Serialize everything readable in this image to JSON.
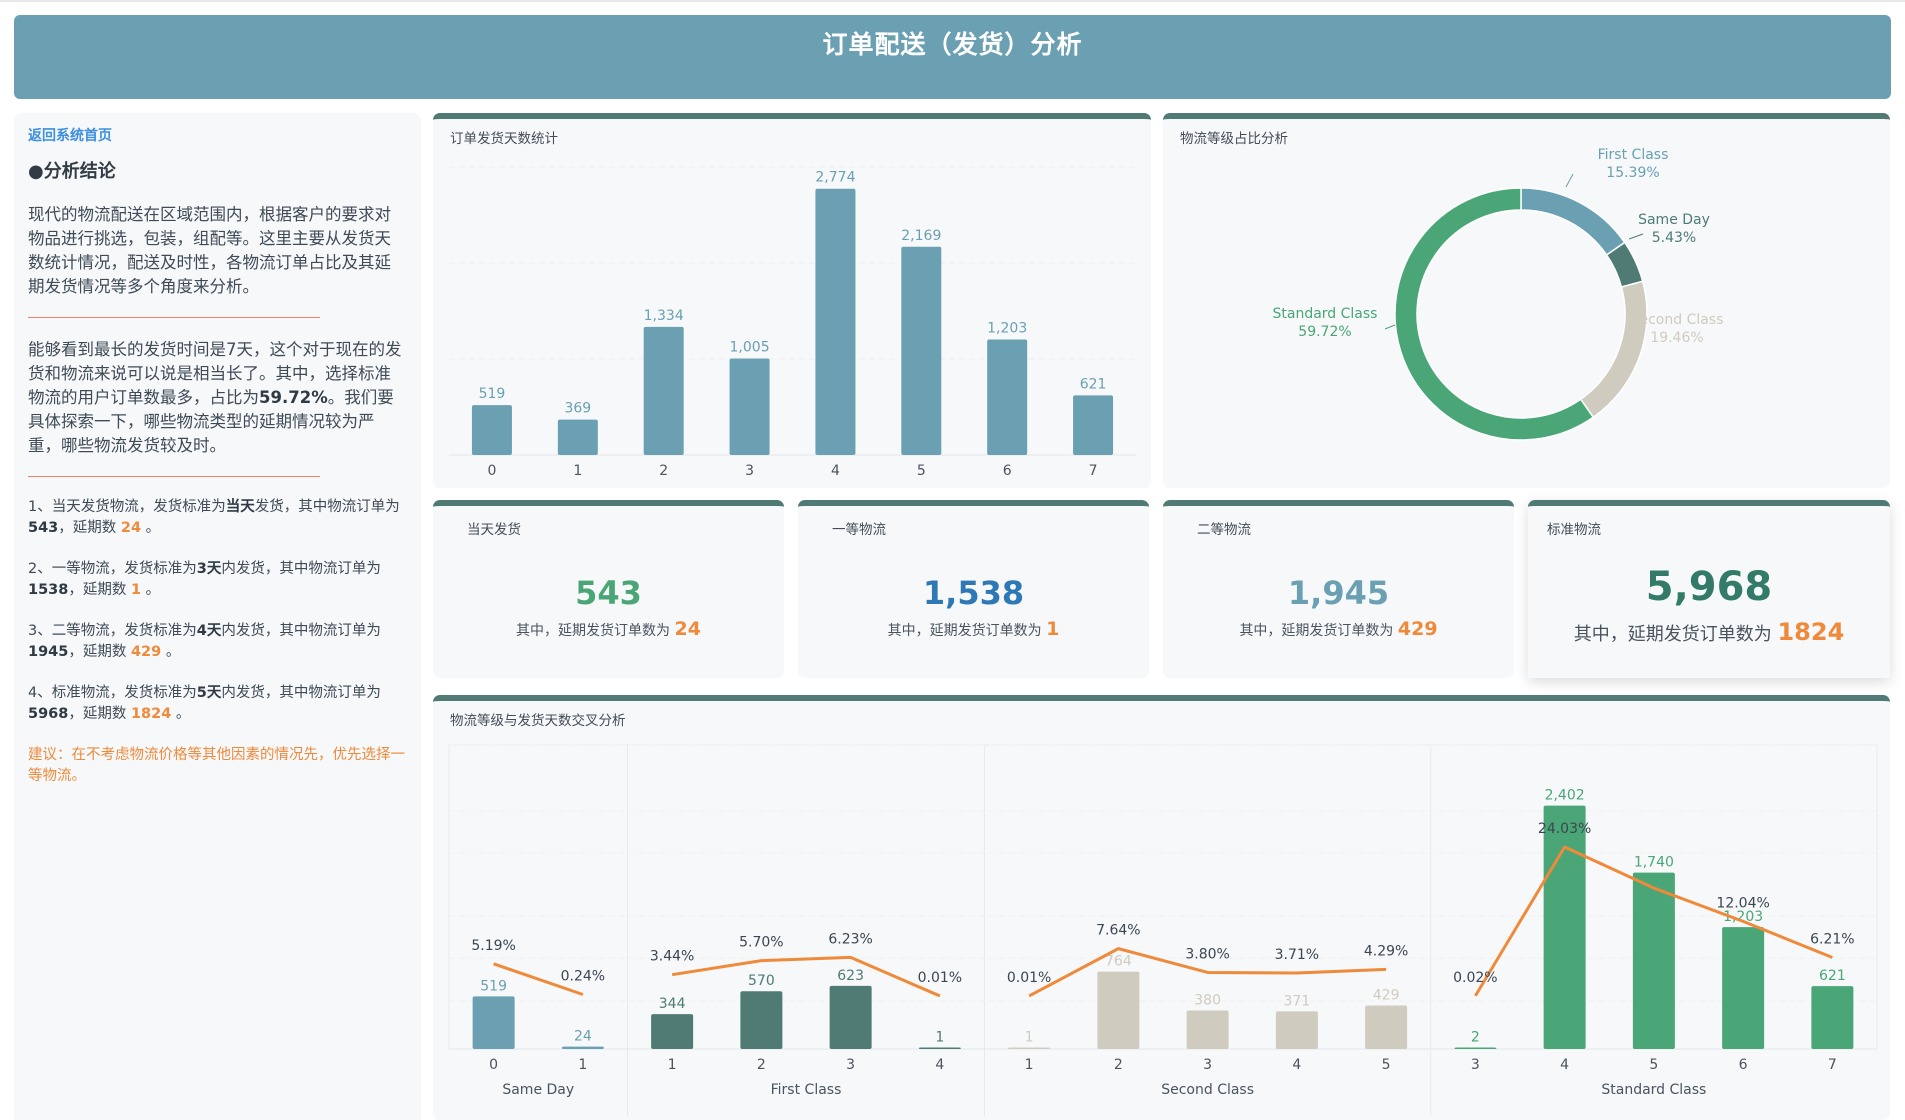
{
  "header": {
    "title": "订单配送（发货）分析"
  },
  "left_panel": {
    "home_link": "返回系统首页",
    "section_title": "●分析结论",
    "intro": "现代的物流配送在区域范围内，根据客户的要求对物品进行挑选，包装，组配等。这里主要从发货天数统计情况，配送及时性，各物流订单占比及其延期发货情况等多个角度来分析。",
    "observation_before": "能够看到最长的发货时间是7天，这个对于现在的发货和物流来说可以说是相当长了。其中，选择标准物流的用户订单数最多，占比为",
    "observation_bold": "59.72%",
    "observation_after": "。我们要具体探索一下，哪些物流类型的延期情况较为严重，哪些物流发货较及时。",
    "items": [
      {
        "prefix": "1、当天发货物流，发货标准为",
        "standard": "当天",
        "mid": "发货，其中物流订单为",
        "orders": "543",
        "delay_label": "，延期数 ",
        "delay": "24",
        "end": " 。"
      },
      {
        "prefix": "2、一等物流，发货标准为",
        "standard": "3天",
        "mid": "内发货，其中物流订单为",
        "orders": "1538",
        "delay_label": "，延期数 ",
        "delay": "1",
        "end": " 。"
      },
      {
        "prefix": "3、二等物流，发货标准为",
        "standard": "4天",
        "mid": "内发货，其中物流订单为",
        "orders": "1945",
        "delay_label": "，延期数 ",
        "delay": "429",
        "end": " 。"
      },
      {
        "prefix": "4、标准物流，发货标准为",
        "standard": "5天",
        "mid": "内发货，其中物流订单为",
        "orders": "5968",
        "delay_label": "，延期数 ",
        "delay": "1824",
        "end": " 。"
      }
    ],
    "advice": "建议：在不考虑物流价格等其他因素的情况先，优先选择一等物流。"
  },
  "kpis": [
    {
      "title": "当天发货",
      "value": "543",
      "sub": "其中，延期发货订单数为",
      "delay": "24",
      "color": "#4aa676"
    },
    {
      "title": "一等物流",
      "value": "1,538",
      "sub": "其中，延期发货订单数为",
      "delay": "1",
      "color": "#2e79b5"
    },
    {
      "title": "二等物流",
      "value": "1,945",
      "sub": "其中，延期发货订单数为",
      "delay": "429",
      "color": "#6aa0b2"
    },
    {
      "title": "标准物流",
      "value": "5,968",
      "sub": "其中，延期发货订单数为",
      "delay": "1824",
      "color": "#337a68"
    }
  ],
  "colors": {
    "header": "#6aa0b2",
    "card_top": "#4f7b74",
    "orange": "#ef8a3a",
    "same_day": "#6aa0b2",
    "first_class": "#4f7b74",
    "second_class": "#d0cbbf",
    "standard_class": "#4aa676"
  },
  "chart_data": [
    {
      "id": "ship-days",
      "type": "bar",
      "title": "订单发货天数统计",
      "categories": [
        "0",
        "1",
        "2",
        "3",
        "4",
        "5",
        "6",
        "7"
      ],
      "values": [
        519,
        369,
        1334,
        1005,
        2774,
        2169,
        1203,
        621
      ],
      "labels": [
        "519",
        "369",
        "1,334",
        "1,005",
        "2,774",
        "2,169",
        "1,203",
        "621"
      ],
      "ylim": [
        0,
        3000
      ],
      "grid": true,
      "color": "#6aa0b2"
    },
    {
      "id": "class-share",
      "type": "pie",
      "title": "物流等级占比分析",
      "donut": true,
      "slices": [
        {
          "name": "First Class",
          "value": 15.39,
          "label": "15.39%",
          "color": "#6aa0b2"
        },
        {
          "name": "Same Day",
          "value": 5.43,
          "label": "5.43%",
          "color": "#4f7b74"
        },
        {
          "name": "Second Class",
          "value": 19.46,
          "label": "19.46%",
          "color": "#d0cbbf"
        },
        {
          "name": "Standard Class",
          "value": 59.72,
          "label": "59.72%",
          "color": "#4aa676"
        }
      ]
    },
    {
      "id": "class-days-cross",
      "type": "bar",
      "title": "物流等级与发货天数交叉分析",
      "ylim": [
        0,
        3000
      ],
      "grid": true,
      "line_color": "#ef8a3a",
      "groups": [
        {
          "name": "Same Day",
          "color": "#6aa0b2",
          "days": [
            "0",
            "1"
          ],
          "counts": [
            519,
            24
          ],
          "count_labels": [
            "519",
            "24"
          ],
          "percents": [
            5.19,
            0.24
          ],
          "percent_labels": [
            "5.19%",
            "0.24%"
          ]
        },
        {
          "name": "First Class",
          "color": "#4f7b74",
          "days": [
            "1",
            "2",
            "3",
            "4"
          ],
          "counts": [
            344,
            570,
            623,
            1
          ],
          "count_labels": [
            "344",
            "570",
            "623",
            "1"
          ],
          "percents": [
            3.44,
            5.7,
            6.23,
            0.01
          ],
          "percent_labels": [
            "3.44%",
            "5.70%",
            "6.23%",
            "0.01%"
          ]
        },
        {
          "name": "Second Class",
          "color": "#d0cbbf",
          "days": [
            "1",
            "2",
            "3",
            "4",
            "5"
          ],
          "counts": [
            1,
            764,
            380,
            371,
            429
          ],
          "count_labels": [
            "1",
            "764",
            "380",
            "371",
            "429"
          ],
          "percents": [
            0.01,
            7.64,
            3.8,
            3.71,
            4.29
          ],
          "percent_labels": [
            "0.01%",
            "7.64%",
            "3.80%",
            "3.71%",
            "4.29%"
          ]
        },
        {
          "name": "Standard Class",
          "color": "#4aa676",
          "days": [
            "3",
            "4",
            "5",
            "6",
            "7"
          ],
          "counts": [
            2,
            2402,
            1740,
            1203,
            621
          ],
          "count_labels": [
            "2",
            "2,402",
            "1,740",
            "1,203",
            "621"
          ],
          "percents": [
            0.02,
            24.03,
            17.41,
            12.04,
            6.21
          ],
          "percent_labels": [
            "0.02%",
            "24.03%",
            "",
            "12.04%",
            "6.21%"
          ]
        }
      ]
    }
  ]
}
